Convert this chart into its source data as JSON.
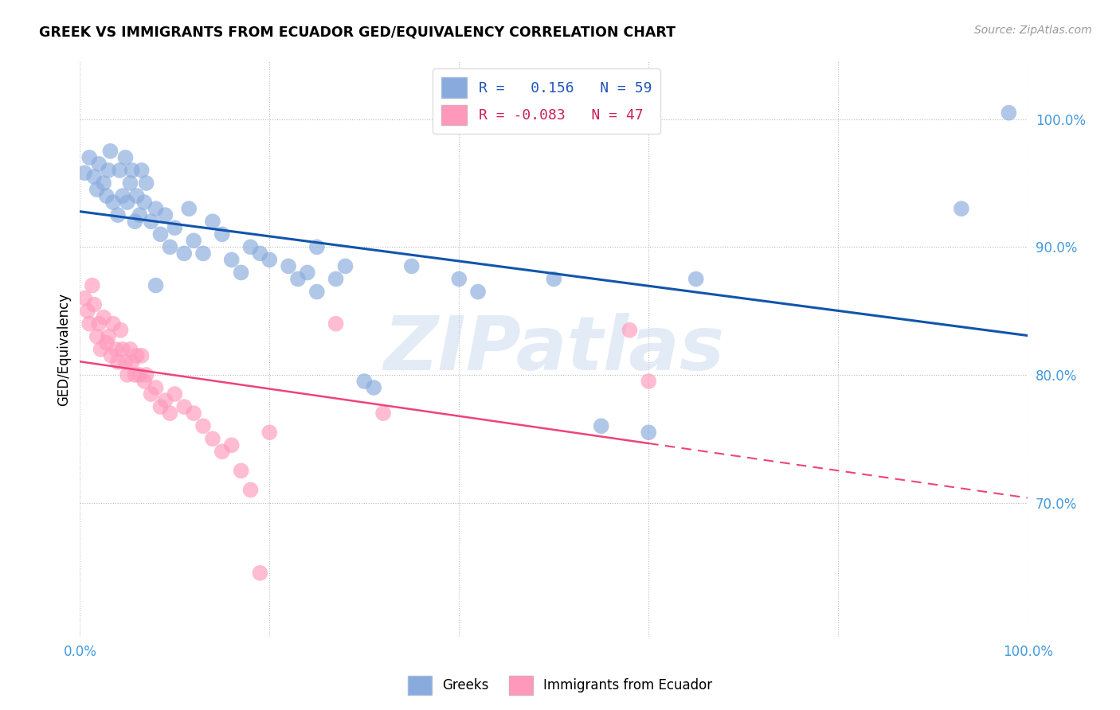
{
  "title": "GREEK VS IMMIGRANTS FROM ECUADOR GED/EQUIVALENCY CORRELATION CHART",
  "source": "Source: ZipAtlas.com",
  "ylabel": "GED/Equivalency",
  "xlim": [
    0.0,
    1.0
  ],
  "ylim": [
    0.595,
    1.045
  ],
  "yticks": [
    0.7,
    0.8,
    0.9,
    1.0
  ],
  "ytick_labels": [
    "70.0%",
    "80.0%",
    "90.0%",
    "100.0%"
  ],
  "xticks": [
    0.0,
    0.2,
    0.4,
    0.6,
    0.8,
    1.0
  ],
  "xtick_labels": [
    "0.0%",
    "",
    "",
    "",
    "",
    "100.0%"
  ],
  "blue_color": "#88aadd",
  "pink_color": "#ff99bb",
  "blue_line_color": "#1155aa",
  "pink_line_color": "#ee4477",
  "pink_line_solid_end": 0.6,
  "watermark": "ZIPatlas",
  "blue_r": 0.156,
  "blue_n": 59,
  "pink_r": -0.083,
  "pink_n": 47,
  "blue_scatter_x": [
    0.005,
    0.01,
    0.015,
    0.018,
    0.02,
    0.025,
    0.028,
    0.03,
    0.032,
    0.035,
    0.04,
    0.042,
    0.045,
    0.048,
    0.05,
    0.053,
    0.055,
    0.058,
    0.06,
    0.063,
    0.065,
    0.068,
    0.07,
    0.075,
    0.08,
    0.085,
    0.09,
    0.095,
    0.1,
    0.11,
    0.115,
    0.12,
    0.13,
    0.14,
    0.15,
    0.16,
    0.17,
    0.18,
    0.19,
    0.2,
    0.22,
    0.23,
    0.24,
    0.25,
    0.27,
    0.28,
    0.3,
    0.31,
    0.35,
    0.4,
    0.42,
    0.5,
    0.55,
    0.6,
    0.65,
    0.93,
    0.98,
    0.08,
    0.25
  ],
  "blue_scatter_y": [
    0.958,
    0.97,
    0.955,
    0.945,
    0.965,
    0.95,
    0.94,
    0.96,
    0.975,
    0.935,
    0.925,
    0.96,
    0.94,
    0.97,
    0.935,
    0.95,
    0.96,
    0.92,
    0.94,
    0.925,
    0.96,
    0.935,
    0.95,
    0.92,
    0.93,
    0.91,
    0.925,
    0.9,
    0.915,
    0.895,
    0.93,
    0.905,
    0.895,
    0.92,
    0.91,
    0.89,
    0.88,
    0.9,
    0.895,
    0.89,
    0.885,
    0.875,
    0.88,
    0.9,
    0.875,
    0.885,
    0.795,
    0.79,
    0.885,
    0.875,
    0.865,
    0.875,
    0.76,
    0.755,
    0.875,
    0.93,
    1.005,
    0.87,
    0.865
  ],
  "pink_scatter_x": [
    0.005,
    0.008,
    0.01,
    0.013,
    0.015,
    0.018,
    0.02,
    0.022,
    0.025,
    0.028,
    0.03,
    0.033,
    0.035,
    0.038,
    0.04,
    0.043,
    0.045,
    0.048,
    0.05,
    0.053,
    0.055,
    0.058,
    0.06,
    0.063,
    0.065,
    0.068,
    0.07,
    0.075,
    0.08,
    0.085,
    0.09,
    0.095,
    0.1,
    0.11,
    0.12,
    0.13,
    0.14,
    0.15,
    0.16,
    0.17,
    0.18,
    0.19,
    0.2,
    0.27,
    0.32,
    0.58,
    0.6
  ],
  "pink_scatter_y": [
    0.86,
    0.85,
    0.84,
    0.87,
    0.855,
    0.83,
    0.84,
    0.82,
    0.845,
    0.825,
    0.83,
    0.815,
    0.84,
    0.82,
    0.81,
    0.835,
    0.82,
    0.81,
    0.8,
    0.82,
    0.81,
    0.8,
    0.815,
    0.8,
    0.815,
    0.795,
    0.8,
    0.785,
    0.79,
    0.775,
    0.78,
    0.77,
    0.785,
    0.775,
    0.77,
    0.76,
    0.75,
    0.74,
    0.745,
    0.725,
    0.71,
    0.645,
    0.755,
    0.84,
    0.77,
    0.835,
    0.795
  ]
}
